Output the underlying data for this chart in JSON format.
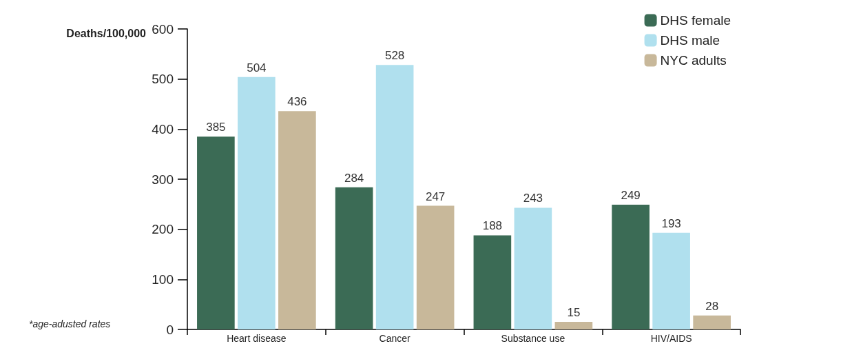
{
  "chart_data": {
    "type": "bar",
    "ylabel": "Deaths/100,000",
    "categories": [
      "Heart disease",
      "Cancer",
      "Substance use",
      "HIV/AIDS"
    ],
    "series": [
      {
        "name": "DHS female",
        "color": "#3b6b55",
        "values": [
          385,
          284,
          188,
          249
        ]
      },
      {
        "name": "DHS male",
        "color": "#b0e0ee",
        "values": [
          504,
          528,
          243,
          193
        ]
      },
      {
        "name": "NYC adults",
        "color": "#c8b89a",
        "values": [
          436,
          247,
          15,
          28
        ]
      }
    ],
    "ylim": [
      0,
      600
    ],
    "yticks": [
      0,
      100,
      200,
      300,
      400,
      500,
      600
    ],
    "data_labels": true,
    "grid": false,
    "legend": "top right",
    "annotations": [
      "*age-adusted rates"
    ]
  }
}
